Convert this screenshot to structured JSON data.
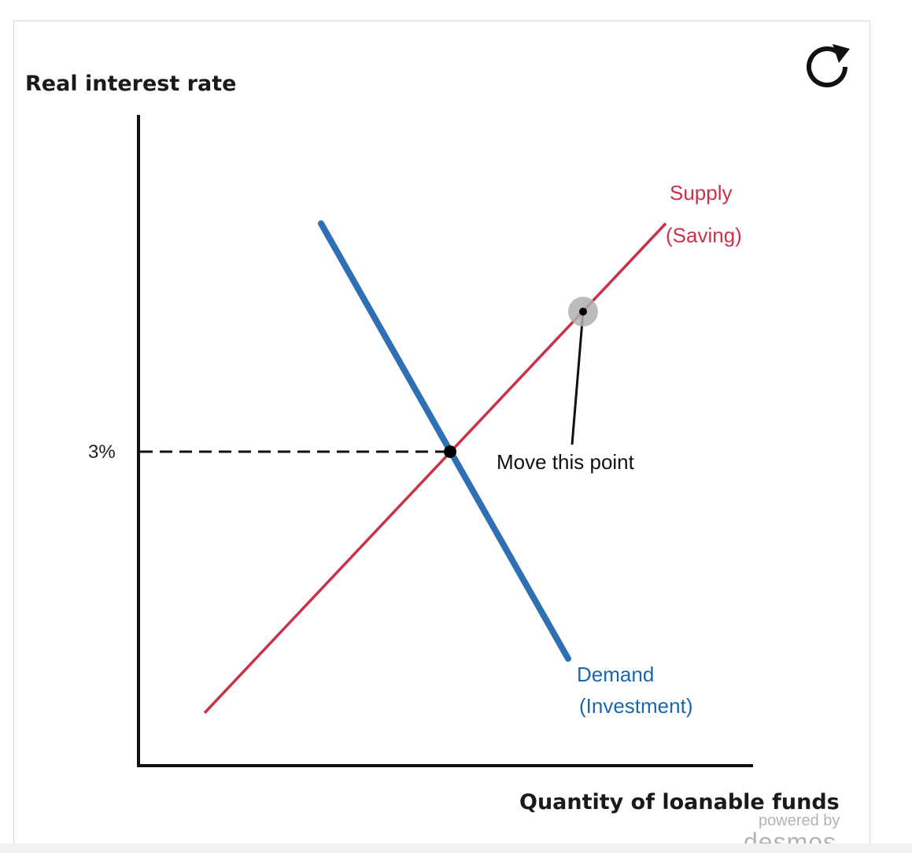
{
  "graph": {
    "y_axis_title": "Real interest rate",
    "x_axis_title": "Quantity of loanable funds",
    "tick_label_y": "3%",
    "supply_label_line1": "Supply",
    "supply_label_line2": "(Saving)",
    "demand_label_line1": "Demand",
    "demand_label_line2": "(Investment)",
    "annotation": "Move this point",
    "colors": {
      "supply": "#c9334a",
      "demand": "#2f6fb3",
      "axis": "#111111",
      "draggable_halo": "#b0b0b0"
    }
  },
  "toolbar": {
    "reset_icon": "reset-icon"
  },
  "branding": {
    "powered_by": "powered by",
    "name": "desmos"
  }
}
